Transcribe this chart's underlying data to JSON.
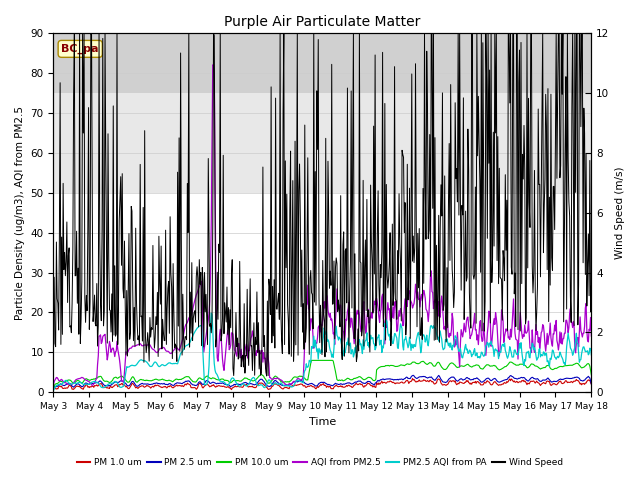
{
  "title": "Purple Air Particulate Matter",
  "xlabel": "Time",
  "ylabel_left": "Particle Density (ug/m3), AQI from PM2.5",
  "ylabel_right": "Wind Speed (m/s)",
  "ylim_left": [
    0,
    90
  ],
  "ylim_right": [
    0,
    12
  ],
  "yticks_left": [
    0,
    10,
    20,
    30,
    40,
    50,
    60,
    70,
    80,
    90
  ],
  "yticks_right": [
    0,
    2,
    4,
    6,
    8,
    10,
    12
  ],
  "station_label": "BC_pa",
  "x_tick_labels": [
    "May 3",
    "May 4",
    "May 5",
    "May 6",
    "May 7",
    "May 8",
    "May 9",
    "May 10",
    "May 11",
    "May 12",
    "May 13",
    "May 14",
    "May 15",
    "May 16",
    "May 17",
    "May 18"
  ],
  "colors": {
    "pm1": "#cc0000",
    "pm25": "#0000bb",
    "pm10": "#00cc00",
    "aqi_pm25": "#aa00cc",
    "pm25_aqi_pa": "#00cccc",
    "wind": "#000000"
  },
  "band_colors": [
    "#ffffff",
    "#ebebeb",
    "#d8d8d8"
  ],
  "legend_entries": [
    {
      "label": "PM 1.0 um",
      "color": "#cc0000"
    },
    {
      "label": "PM 2.5 um",
      "color": "#0000bb"
    },
    {
      "label": "PM 10.0 um",
      "color": "#00cc00"
    },
    {
      "label": "AQI from PM2.5",
      "color": "#aa00cc"
    },
    {
      "label": "PM2.5 AQI from PA",
      "color": "#00cccc"
    },
    {
      "label": "Wind Speed",
      "color": "#000000"
    }
  ]
}
